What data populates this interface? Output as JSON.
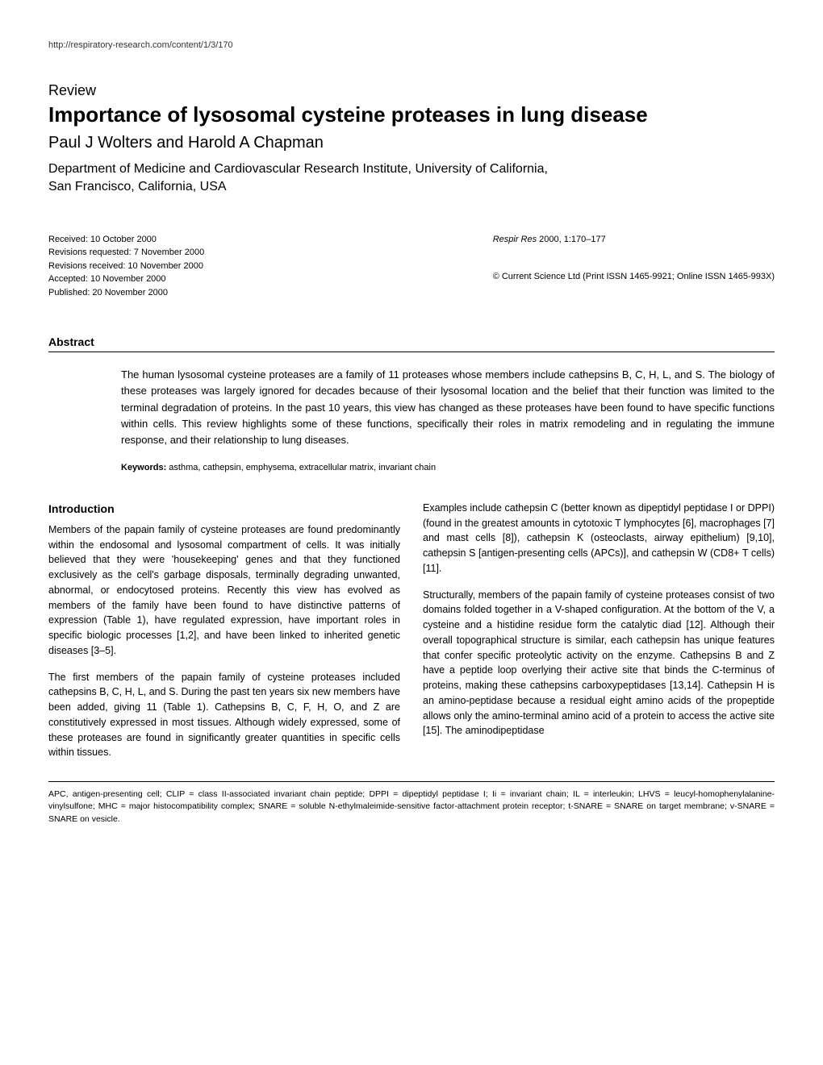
{
  "header": {
    "url": "http://respiratory-research.com/content/1/3/170"
  },
  "article": {
    "review_label": "Review",
    "title": "Importance of lysosomal cysteine proteases in lung disease",
    "authors": "Paul J Wolters and Harold A Chapman",
    "affiliation_line1": "Department of Medicine and Cardiovascular Research Institute, University of California,",
    "affiliation_line2": "San Francisco, California, USA"
  },
  "meta": {
    "received": "Received: 10 October 2000",
    "revisions_requested": "Revisions requested: 7 November 2000",
    "revisions_received": "Revisions received: 10 November 2000",
    "accepted": "Accepted: 10 November 2000",
    "published": "Published: 20 November 2000",
    "citation_journal": "Respir Res",
    "citation_rest": " 2000, 1:170–177",
    "copyright": "© Current Science Ltd (Print ISSN 1465-9921; Online ISSN 1465-993X)"
  },
  "abstract": {
    "heading": "Abstract",
    "text": "The human lysosomal cysteine proteases are a family of 11 proteases whose members include cathepsins B, C, H, L, and S. The biology of these proteases was largely ignored for decades because of their lysosomal location and the belief that their function was limited to the terminal degradation of proteins. In the past 10 years, this view has changed as these proteases have been found to have specific functions within cells. This review highlights some of these functions, specifically their roles in matrix remodeling and in regulating the immune response, and their relationship to lung diseases.",
    "keywords_label": "Keywords:",
    "keywords_text": " asthma, cathepsin, emphysema, extracellular matrix, invariant chain"
  },
  "introduction": {
    "heading": "Introduction",
    "p1": "Members of the papain family of cysteine proteases are found predominantly within the endosomal and lysosomal compartment of cells. It was initially believed that they were 'housekeeping' genes and that they functioned exclusively as the cell's garbage disposals, terminally degrading unwanted, abnormal, or endocytosed proteins. Recently this view has evolved as members of the family have been found to have distinctive patterns of expression (Table 1), have regulated expression, have important roles in specific biologic processes [1,2], and have been linked to inherited genetic diseases [3–5].",
    "p2": "The first members of the papain family of cysteine proteases included cathepsins B, C, H, L, and S. During the past ten years six new members have been added, giving 11 (Table 1). Cathepsins B, C, F, H, O, and Z are constitutively expressed in most tissues. Although widely expressed, some of these proteases are found in significantly greater quantities in specific cells within tissues.",
    "p3": "Examples include cathepsin C (better known as dipeptidyl peptidase I or DPPI) (found in the greatest amounts in cytotoxic T lymphocytes [6], macrophages [7] and mast cells [8]), cathepsin K (osteoclasts, airway epithelium) [9,10], cathepsin S [antigen-presenting cells (APCs)], and cathepsin W (CD8+ T cells) [11].",
    "p4": "Structurally, members of the papain family of cysteine proteases consist of two domains folded together in a V-shaped configuration. At the bottom of the V, a cysteine and a histidine residue form the catalytic diad [12]. Although their overall topographical structure is similar, each cathepsin has unique features that confer specific proteolytic activity on the enzyme. Cathepsins B and Z have a peptide loop overlying their active site that binds the C-terminus of proteins, making these cathepsins carboxypeptidases [13,14]. Cathepsin H is an amino-peptidase because a residual eight amino acids of the propeptide allows only the amino-terminal amino acid of a protein to access the active site [15]. The aminodipeptidase"
  },
  "footnote": {
    "text": "APC, antigen-presenting cell; CLIP = class II-associated invariant chain peptide; DPPI = dipeptidyl peptidase I; Ii = invariant chain; IL = interleukin; LHVS = leucyl-homophenylalanine-vinylsulfone; MHC = major histocompatibility complex; SNARE = soluble N-ethylmaleimide-sensitive factor-attachment protein receptor; t-SNARE = SNARE on target membrane; v-SNARE = SNARE on vesicle."
  }
}
